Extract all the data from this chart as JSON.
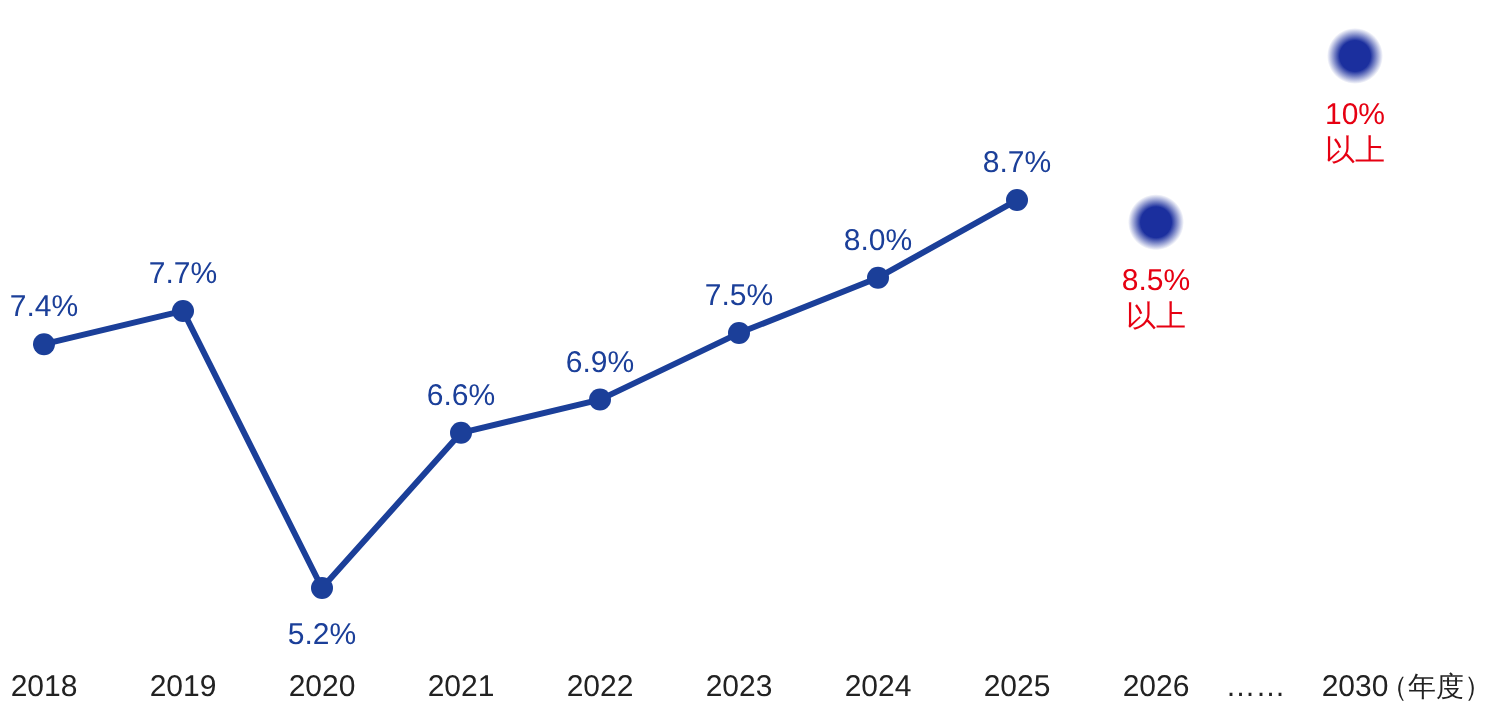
{
  "chart_data": {
    "type": "line",
    "xlabel": "（年度）",
    "categories": [
      "2018",
      "2019",
      "2020",
      "2021",
      "2022",
      "2023",
      "2024",
      "2025",
      "2026",
      "2030"
    ],
    "series": [
      {
        "color": "#1b3f99",
        "values": [
          7.4,
          7.7,
          5.2,
          6.6,
          6.9,
          7.5,
          8.0,
          8.7,
          null,
          null
        ],
        "value_labels": [
          "7.4%",
          "7.7%",
          "5.2%",
          "6.6%",
          "6.9%",
          "7.5%",
          "8.0%",
          "8.7%",
          null,
          null
        ]
      },
      {
        "type": "scatter",
        "color": "#1b2f9e",
        "values": [
          null,
          null,
          null,
          null,
          null,
          null,
          null,
          null,
          8.5,
          10
        ],
        "value_labels": [
          null,
          null,
          null,
          null,
          null,
          null,
          null,
          null,
          "8.5%\n以上",
          "10%\n以上"
        ]
      }
    ],
    "annotations": [
      "……"
    ],
    "marker": "circle",
    "line_style": "solid"
  }
}
